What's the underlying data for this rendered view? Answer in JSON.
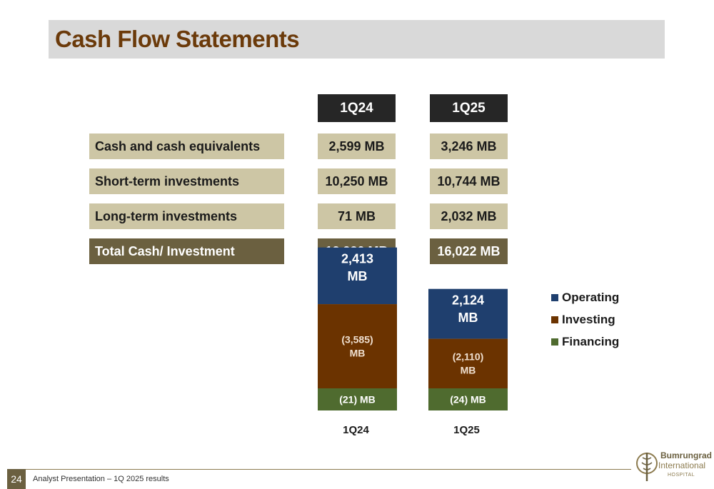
{
  "page": {
    "title": "Cash Flow Statements",
    "page_number": "24",
    "footer": "Analyst Presentation – 1Q 2025 results"
  },
  "logo": {
    "name": "Bumrungrad",
    "sub": "International",
    "tag": "HOSPITAL"
  },
  "table": {
    "columns": [
      "1Q24",
      "1Q25"
    ],
    "rows": [
      {
        "label": "Cash and cash equivalents",
        "values": [
          "2,599 MB",
          "3,246 MB"
        ]
      },
      {
        "label": "Short-term investments",
        "values": [
          "10,250 MB",
          "10,744 MB"
        ]
      },
      {
        "label": "Long-term investments",
        "values": [
          "71 MB",
          "2,032 MB"
        ]
      },
      {
        "label": "Total Cash/ Investment",
        "values": [
          "12,920 MB",
          "16,022 MB"
        ]
      }
    ]
  },
  "chart_data": {
    "type": "bar",
    "stacked": true,
    "categories": [
      "1Q24",
      "1Q25"
    ],
    "series": [
      {
        "name": "Operating",
        "values": [
          2413,
          2124
        ],
        "labels": [
          "2,413\nMB",
          "2,124\nMB"
        ],
        "color": "#1f3f6e"
      },
      {
        "name": "Investing",
        "values": [
          -3585,
          -2110
        ],
        "labels": [
          "(3,585)\nMB",
          "(2,110)\nMB"
        ],
        "color": "#6b3300"
      },
      {
        "name": "Financing",
        "values": [
          -21,
          -24
        ],
        "labels": [
          "(21) MB",
          "(24) MB"
        ],
        "color": "#4f6b2f"
      }
    ],
    "legend_position": "right",
    "grid": false
  }
}
